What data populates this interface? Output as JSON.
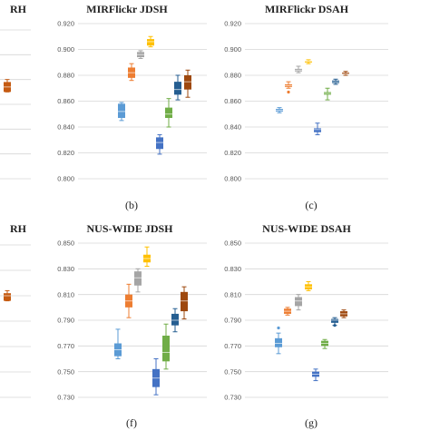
{
  "chart_data": [
    {
      "id": "a",
      "type": "box",
      "title": "RH",
      "caption": "",
      "series_colors": [
        "#c55a11"
      ],
      "boxes": [
        {
          "color": "#c55a11",
          "whisker": [
            0.87,
            0.88
          ],
          "q": [
            0.87,
            0.874,
            0.878
          ]
        }
      ]
    },
    {
      "id": "b",
      "type": "box",
      "title": "MIRFlickr JDSH",
      "caption": "(b)",
      "ylim": [
        0.8,
        0.92
      ],
      "yticks": [
        "0.800",
        "0.820",
        "0.840",
        "0.860",
        "0.880",
        "0.900",
        "0.920"
      ],
      "grid": true,
      "boxes": [
        {
          "color": "#5b9bd5",
          "whisker": [
            0.845,
            0.859
          ],
          "q": [
            0.847,
            0.852,
            0.858
          ],
          "outliers": []
        },
        {
          "color": "#ed7d31",
          "whisker": [
            0.876,
            0.889
          ],
          "q": [
            0.878,
            0.882,
            0.886
          ],
          "outliers": []
        },
        {
          "color": "#a5a5a5",
          "whisker": [
            0.893,
            0.899
          ],
          "q": [
            0.894,
            0.896,
            0.898
          ],
          "outliers": []
        },
        {
          "color": "#ffc000",
          "whisker": [
            0.902,
            0.91
          ],
          "q": [
            0.903,
            0.906,
            0.908
          ],
          "outliers": []
        },
        {
          "color": "#4472c4",
          "whisker": [
            0.819,
            0.834
          ],
          "q": [
            0.823,
            0.828,
            0.832
          ],
          "outliers": []
        },
        {
          "color": "#70ad47",
          "whisker": [
            0.84,
            0.862
          ],
          "q": [
            0.847,
            0.85,
            0.855
          ],
          "outliers": []
        },
        {
          "color": "#255e91",
          "whisker": [
            0.861,
            0.88
          ],
          "q": [
            0.865,
            0.869,
            0.875
          ],
          "outliers": []
        },
        {
          "color": "#9e480e",
          "whisker": [
            0.863,
            0.884
          ],
          "q": [
            0.869,
            0.875,
            0.88
          ],
          "outliers": []
        }
      ]
    },
    {
      "id": "c",
      "type": "box",
      "title": "MIRFlickr DSAH",
      "caption": "(c)",
      "ylim": [
        0.8,
        0.92
      ],
      "yticks": [
        "0.800",
        "0.820",
        "0.840",
        "0.860",
        "0.880",
        "0.900",
        "0.920"
      ],
      "grid": true,
      "boxes": [
        {
          "color": "#5b9bd5",
          "whisker": [
            0.851,
            0.855
          ],
          "q": [
            0.852,
            0.853,
            0.854
          ],
          "outliers": []
        },
        {
          "color": "#ed7d31",
          "whisker": [
            0.87,
            0.875
          ],
          "q": [
            0.871,
            0.872,
            0.873
          ],
          "outliers": [
            0.867
          ]
        },
        {
          "color": "#a5a5a5",
          "whisker": [
            0.882,
            0.887
          ],
          "q": [
            0.883,
            0.884,
            0.885
          ],
          "outliers": []
        },
        {
          "color": "#ffc000",
          "whisker": [
            0.889,
            0.892
          ],
          "q": [
            0.89,
            0.891,
            0.891
          ],
          "outliers": []
        },
        {
          "color": "#4472c4",
          "whisker": [
            0.834,
            0.843
          ],
          "q": [
            0.836,
            0.838,
            0.839
          ],
          "outliers": []
        },
        {
          "color": "#70ad47",
          "whisker": [
            0.861,
            0.87
          ],
          "q": [
            0.865,
            0.866,
            0.867
          ],
          "outliers": []
        },
        {
          "color": "#255e91",
          "whisker": [
            0.873,
            0.877
          ],
          "q": [
            0.874,
            0.875,
            0.876
          ],
          "outliers": []
        },
        {
          "color": "#9e480e",
          "whisker": [
            0.88,
            0.883
          ],
          "q": [
            0.881,
            0.881,
            0.882
          ],
          "outliers": []
        }
      ]
    },
    {
      "id": "e",
      "type": "box",
      "title": "RH",
      "caption": "",
      "boxes": [
        {
          "color": "#c55a11",
          "whisker": [
            0.806,
            0.814
          ],
          "q": [
            0.806,
            0.81,
            0.812
          ]
        }
      ]
    },
    {
      "id": "f",
      "type": "box",
      "title": "NUS-WIDE JDSH",
      "caption": "(f)",
      "ylim": [
        0.73,
        0.85
      ],
      "yticks": [
        "0.730",
        "0.750",
        "0.770",
        "0.790",
        "0.810",
        "0.830",
        "0.850"
      ],
      "grid": true,
      "boxes": [
        {
          "color": "#5b9bd5",
          "whisker": [
            0.76,
            0.783
          ],
          "q": [
            0.762,
            0.767,
            0.772
          ],
          "outliers": []
        },
        {
          "color": "#ed7d31",
          "whisker": [
            0.792,
            0.818
          ],
          "q": [
            0.8,
            0.805,
            0.81
          ],
          "outliers": []
        },
        {
          "color": "#a5a5a5",
          "whisker": [
            0.812,
            0.83
          ],
          "q": [
            0.817,
            0.823,
            0.828
          ],
          "outliers": []
        },
        {
          "color": "#ffc000",
          "whisker": [
            0.832,
            0.847
          ],
          "q": [
            0.835,
            0.838,
            0.841
          ],
          "outliers": []
        },
        {
          "color": "#4472c4",
          "whisker": [
            0.732,
            0.76
          ],
          "q": [
            0.738,
            0.745,
            0.752
          ],
          "outliers": []
        },
        {
          "color": "#70ad47",
          "whisker": [
            0.752,
            0.787
          ],
          "q": [
            0.758,
            0.765,
            0.778
          ],
          "outliers": []
        },
        {
          "color": "#255e91",
          "whisker": [
            0.781,
            0.799
          ],
          "q": [
            0.786,
            0.79,
            0.795
          ],
          "outliers": []
        },
        {
          "color": "#9e480e",
          "whisker": [
            0.791,
            0.816
          ],
          "q": [
            0.797,
            0.805,
            0.812
          ],
          "outliers": []
        }
      ]
    },
    {
      "id": "g",
      "type": "box",
      "title": "NUS-WIDE DSAH",
      "caption": "(g)",
      "ylim": [
        0.73,
        0.85
      ],
      "yticks": [
        "0.730",
        "0.750",
        "0.770",
        "0.790",
        "0.810",
        "0.830",
        "0.850"
      ],
      "grid": true,
      "boxes": [
        {
          "color": "#5b9bd5",
          "whisker": [
            0.764,
            0.78
          ],
          "q": [
            0.769,
            0.772,
            0.776
          ],
          "outliers": [
            0.784
          ]
        },
        {
          "color": "#ed7d31",
          "whisker": [
            0.794,
            0.8
          ],
          "q": [
            0.795,
            0.797,
            0.799
          ],
          "outliers": []
        },
        {
          "color": "#a5a5a5",
          "whisker": [
            0.798,
            0.81
          ],
          "q": [
            0.801,
            0.805,
            0.808
          ],
          "outliers": []
        },
        {
          "color": "#ffc000",
          "whisker": [
            0.813,
            0.82
          ],
          "q": [
            0.814,
            0.816,
            0.818
          ],
          "outliers": []
        },
        {
          "color": "#4472c4",
          "whisker": [
            0.743,
            0.752
          ],
          "q": [
            0.746,
            0.748,
            0.75
          ],
          "outliers": []
        },
        {
          "color": "#70ad47",
          "whisker": [
            0.768,
            0.775
          ],
          "q": [
            0.77,
            0.772,
            0.774
          ],
          "outliers": []
        },
        {
          "color": "#255e91",
          "whisker": [
            0.786,
            0.792
          ],
          "q": [
            0.788,
            0.79,
            0.791
          ],
          "outliers": [
            0.786
          ]
        },
        {
          "color": "#9e480e",
          "whisker": [
            0.792,
            0.798
          ],
          "q": [
            0.793,
            0.795,
            0.797
          ],
          "outliers": []
        }
      ]
    }
  ]
}
